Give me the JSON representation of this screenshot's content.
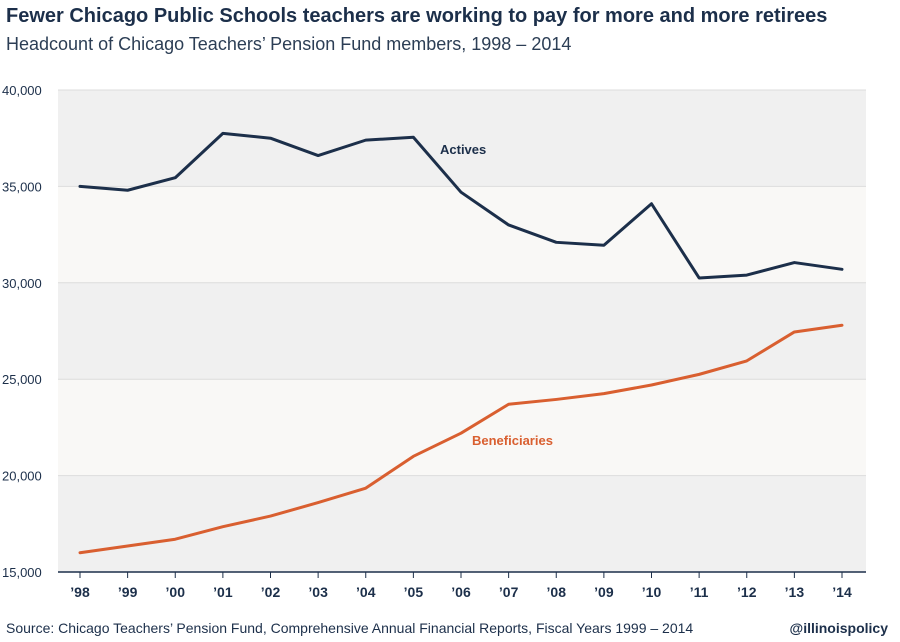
{
  "chart_data": {
    "type": "line",
    "title": "Fewer Chicago Public Schools teachers are working to pay for more and more retirees",
    "subtitle": "Headcount of Chicago Teachers’ Pension Fund members, 1998 – 2014",
    "categories": [
      "’98",
      "’99",
      "’00",
      "’01",
      "’02",
      "’03",
      "’04",
      "’05",
      "’06",
      "’07",
      "’08",
      "’09",
      "’10",
      "’11",
      "’12",
      "’13",
      "’14"
    ],
    "ylim": [
      15000,
      40000
    ],
    "yticks": [
      "15,000",
      "20,000",
      "25,000",
      "30,000",
      "35,000",
      "40,000"
    ],
    "ytick_values": [
      15000,
      20000,
      25000,
      30000,
      35000,
      40000
    ],
    "grid": true,
    "series": [
      {
        "name": "Actives",
        "color": "#1c2f4a",
        "values": [
          35000,
          34800,
          35450,
          37750,
          37500,
          36600,
          37400,
          37550,
          34700,
          33000,
          32100,
          31950,
          34100,
          30250,
          30400,
          31050,
          30700
        ]
      },
      {
        "name": "Beneficiaries",
        "color": "#d95f30",
        "values": [
          16000,
          16350,
          16700,
          17350,
          17900,
          18600,
          19350,
          21000,
          22200,
          23700,
          23950,
          24250,
          24700,
          25250,
          25950,
          27450,
          27800
        ]
      }
    ]
  },
  "source": "Source: Chicago Teachers’ Pension Fund, Comprehensive Annual Financial Reports, Fiscal Years 1999 – 2014",
  "brand": "@illinoispolicy"
}
